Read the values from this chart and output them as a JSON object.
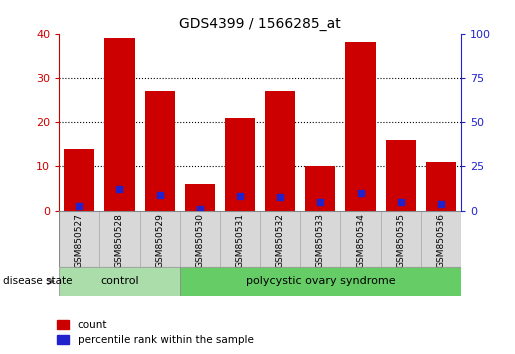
{
  "title": "GDS4399 / 1566285_at",
  "samples": [
    "GSM850527",
    "GSM850528",
    "GSM850529",
    "GSM850530",
    "GSM850531",
    "GSM850532",
    "GSM850533",
    "GSM850534",
    "GSM850535",
    "GSM850536"
  ],
  "count_values": [
    14,
    39,
    27,
    6,
    21,
    27,
    10,
    38,
    16,
    11
  ],
  "percentile_values": [
    2.5,
    12,
    9,
    1,
    8.5,
    7.5,
    5,
    10,
    5,
    4
  ],
  "bar_color": "#cc0000",
  "dot_color": "#2222cc",
  "left_ylim": [
    0,
    40
  ],
  "right_ylim": [
    0,
    100
  ],
  "left_yticks": [
    0,
    10,
    20,
    30,
    40
  ],
  "right_yticks": [
    0,
    25,
    50,
    75,
    100
  ],
  "left_tick_color": "#cc0000",
  "right_tick_color": "#2222cc",
  "grid_color": "#000000",
  "control_samples": 3,
  "control_label": "control",
  "disease_label": "polycystic ovary syndrome",
  "disease_state_label": "disease state",
  "control_color": "#aaddaa",
  "disease_color": "#66cc66",
  "legend_count_label": "count",
  "legend_percentile_label": "percentile rank within the sample",
  "bar_width": 0.75,
  "bg_color": "#ffffff",
  "panel_bg_color": "#d8d8d8"
}
